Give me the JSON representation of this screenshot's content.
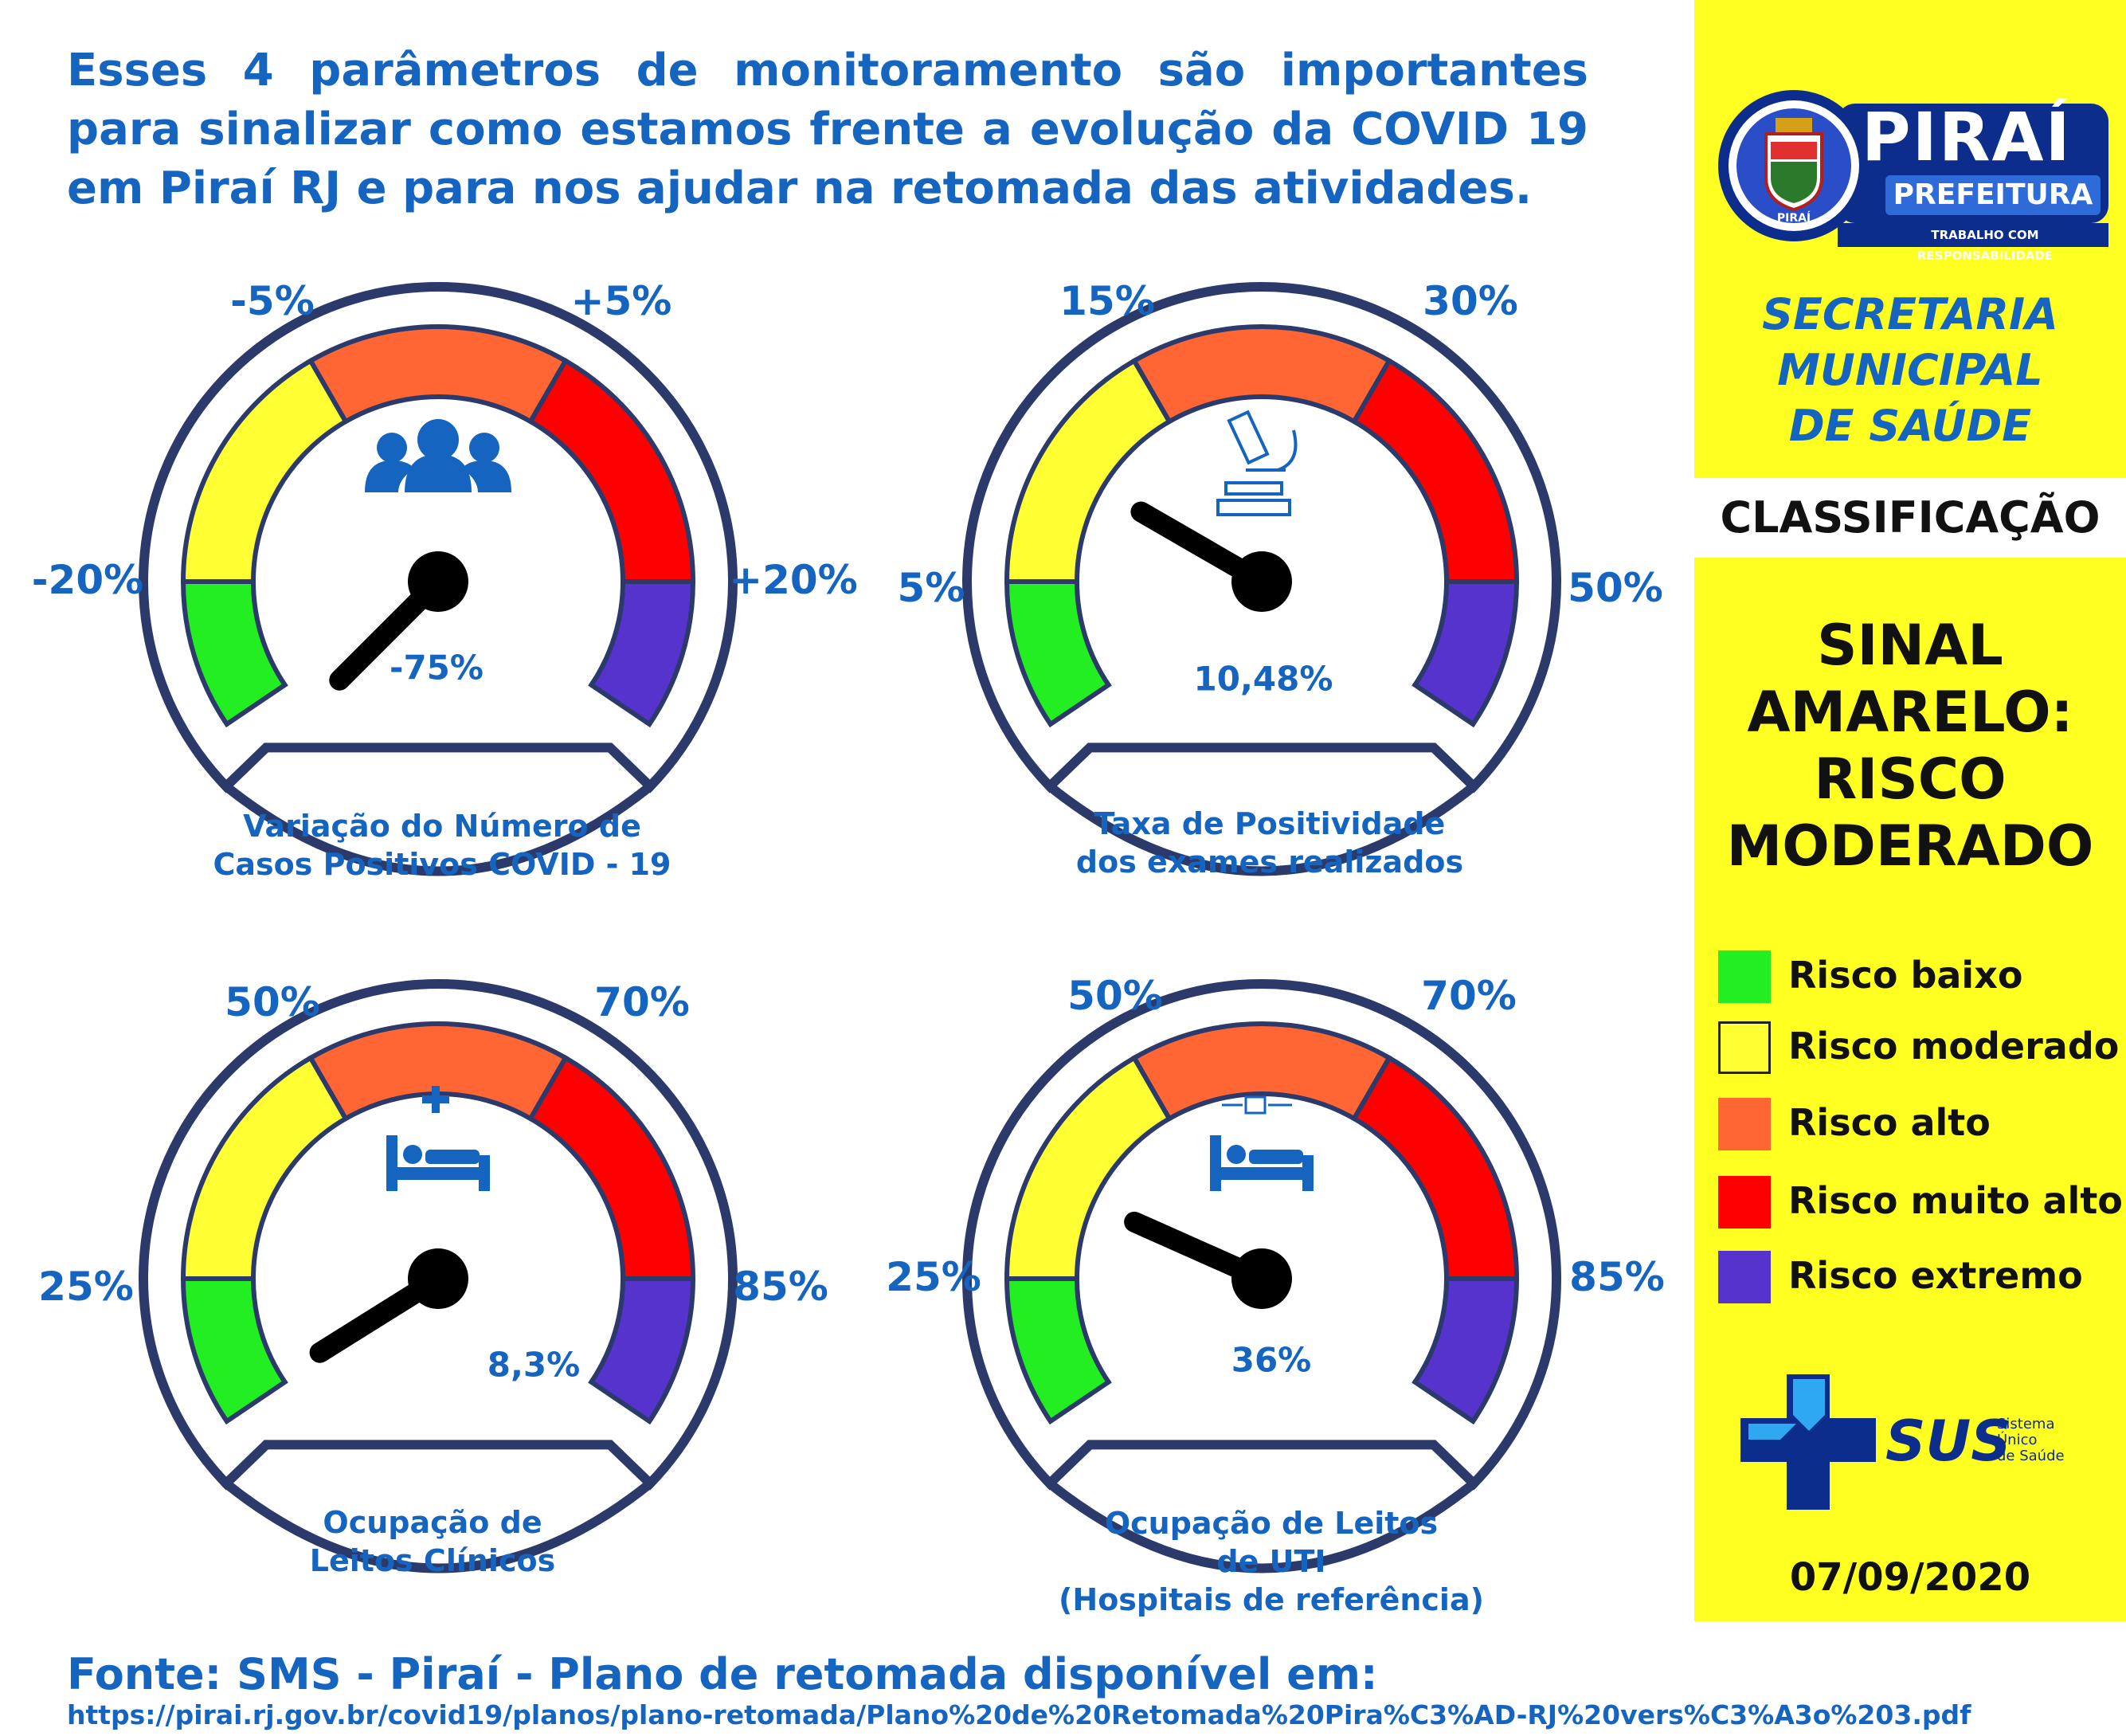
{
  "intro": "Esses 4 parâmetros de monitoramento são importantes para sinalizar como estamos frente a evolução da COVID 19 em Piraí RJ e para nos ajudar na retomada das atividades.",
  "colors": {
    "green": "#22ee22",
    "yellow": "#ffff33",
    "orange": "#ff6633",
    "red": "#ff0000",
    "purple": "#5533cc",
    "blue": "#1565c0",
    "frame": "#2b3a6a"
  },
  "gauges": [
    {
      "ticks": {
        "left": "-20%",
        "upper_left": "-5%",
        "upper_right": "+5%",
        "right": "+20%"
      },
      "value": "-75%",
      "needle_angle": 225,
      "icon": "people-icon",
      "caption": [
        "Variação do Número de",
        "Casos Positivos COVID - 19"
      ]
    },
    {
      "ticks": {
        "left": "5%",
        "upper_left": "15%",
        "upper_right": "30%",
        "right": "50%"
      },
      "value": "10,48%",
      "needle_angle": 150,
      "icon": "microscope-icon",
      "caption": [
        "Taxa de Positividade",
        "dos exames realizados"
      ]
    },
    {
      "ticks": {
        "left": "25%",
        "upper_left": "50%",
        "upper_right": "70%",
        "right": "85%"
      },
      "value": "8,3%",
      "needle_angle": 212,
      "icon": "hospital-bed-icon",
      "caption": [
        "Ocupação de",
        "Leitos Clínicos"
      ]
    },
    {
      "ticks": {
        "left": "25%",
        "upper_left": "50%",
        "upper_right": "70%",
        "right": "85%"
      },
      "value": "36%",
      "needle_angle": 156,
      "icon": "icu-bed-icon",
      "caption": [
        "Ocupação de Leitos",
        "de UTI",
        "(Hospitais de referência)"
      ]
    }
  ],
  "logo": {
    "name": "PIRAÍ",
    "sub": "PREFEITURA",
    "slogan": "TRABALHO COM RESPONSABILIDADE",
    "seal": "PIRAÍ"
  },
  "secretaria": [
    "SECRETARIA",
    "MUNICIPAL",
    "DE SAÚDE"
  ],
  "classificacao": "CLASSIFICAÇÃO",
  "sinal": [
    "SINAL",
    "AMARELO:",
    "RISCO",
    "MODERADO"
  ],
  "legend": [
    {
      "label": "Risco baixo",
      "color": "#22ee22"
    },
    {
      "label": "Risco moderado",
      "color": "#ffff33"
    },
    {
      "label": "Risco alto",
      "color": "#ff6633"
    },
    {
      "label": "Risco muito alto",
      "color": "#ff0000"
    },
    {
      "label": "Risco extremo",
      "color": "#5533cc"
    }
  ],
  "sus": {
    "brand": "SUS",
    "lines": [
      "Sistema",
      "Único",
      "de Saúde"
    ]
  },
  "date": "07/09/2020",
  "fonte": "Fonte: SMS - Piraí - Plano de retomada disponível em:",
  "url": "https://pirai.rj.gov.br/covid19/planos/plano-retomada/Plano%20de%20Retomada%20Pira%C3%AD-RJ%20vers%C3%A3o%203.pdf"
}
